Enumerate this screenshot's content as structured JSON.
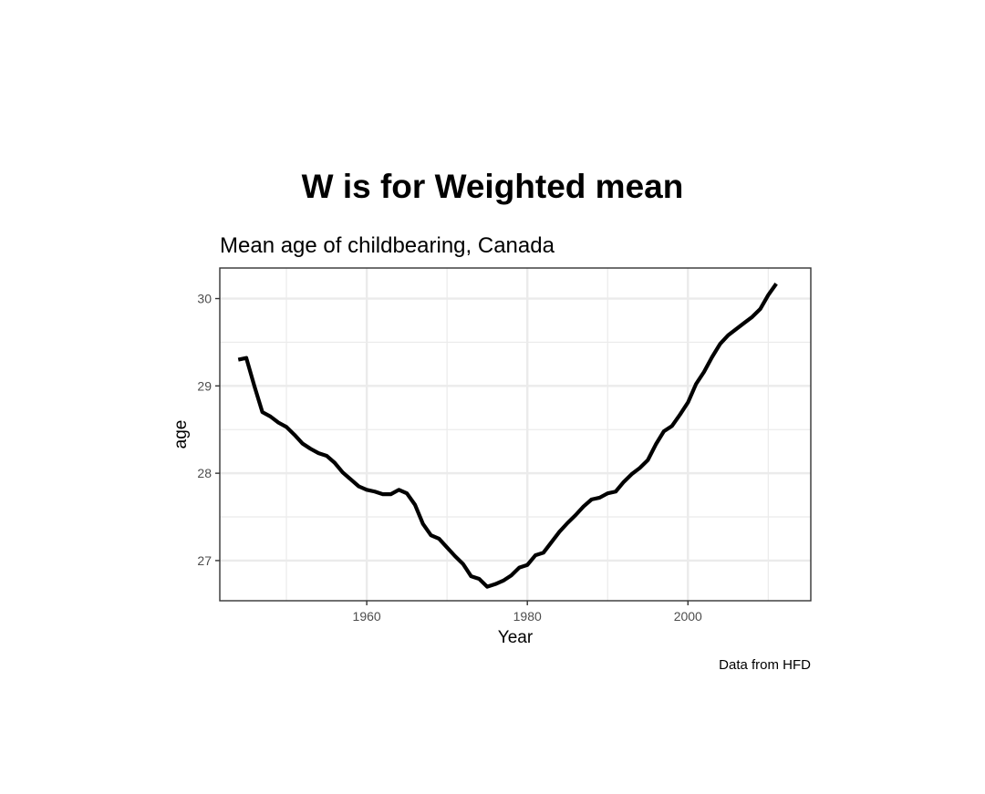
{
  "chart_data": {
    "type": "line",
    "title": "W is for Weighted mean",
    "subtitle": "Mean age of childbearing, Canada",
    "xlabel": "Year",
    "ylabel": "age",
    "caption": "Data from HFD",
    "xlim": [
      1941.7,
      2015.3
    ],
    "ylim": [
      26.54,
      30.35
    ],
    "x_ticks": [
      1960,
      1980,
      2000
    ],
    "x_tick_labels": [
      "1960",
      "1980",
      "2000"
    ],
    "x_minor_ticks": [
      1950,
      1970,
      1990,
      2010
    ],
    "y_ticks": [
      27,
      28,
      29,
      30
    ],
    "y_tick_labels": [
      "27",
      "28",
      "29",
      "30"
    ],
    "y_minor_ticks": [
      27.5,
      28.5,
      29.5
    ],
    "grid": true,
    "legend": "none",
    "line_color": "#000000",
    "grid_color": "#ebebeb",
    "panel_border_color": "#333333",
    "series": [
      {
        "x": [
          1944,
          1945,
          1946,
          1947,
          1948,
          1949,
          1950,
          1951,
          1952,
          1953,
          1954,
          1955,
          1956,
          1957,
          1958,
          1959,
          1960,
          1961,
          1962,
          1963,
          1964,
          1965,
          1966,
          1967,
          1968,
          1969,
          1970,
          1971,
          1972,
          1973,
          1974,
          1975,
          1976,
          1977,
          1978,
          1979,
          1980,
          1981,
          1982,
          1983,
          1984,
          1985,
          1986,
          1987,
          1988,
          1989,
          1990,
          1991,
          1992,
          1993,
          1994,
          1995,
          1996,
          1997,
          1998,
          1999,
          2000,
          2001,
          2002,
          2003,
          2004,
          2005,
          2006,
          2007,
          2008,
          2009,
          2010,
          2011
        ],
        "y": [
          29.3,
          29.32,
          29.0,
          28.7,
          28.65,
          28.58,
          28.53,
          28.44,
          28.34,
          28.28,
          28.23,
          28.2,
          28.12,
          28.01,
          27.93,
          27.85,
          27.81,
          27.79,
          27.76,
          27.76,
          27.81,
          27.77,
          27.64,
          27.42,
          27.29,
          27.25,
          27.15,
          27.05,
          26.96,
          26.82,
          26.79,
          26.7,
          26.73,
          26.77,
          26.83,
          26.92,
          26.95,
          27.06,
          27.09,
          27.21,
          27.33,
          27.43,
          27.52,
          27.62,
          27.7,
          27.72,
          27.77,
          27.79,
          27.9,
          27.99,
          28.06,
          28.15,
          28.33,
          28.48,
          28.54,
          28.67,
          28.81,
          29.02,
          29.16,
          29.33,
          29.48,
          29.58,
          29.65,
          29.72,
          29.79,
          29.88,
          30.04,
          30.17
        ]
      }
    ]
  }
}
